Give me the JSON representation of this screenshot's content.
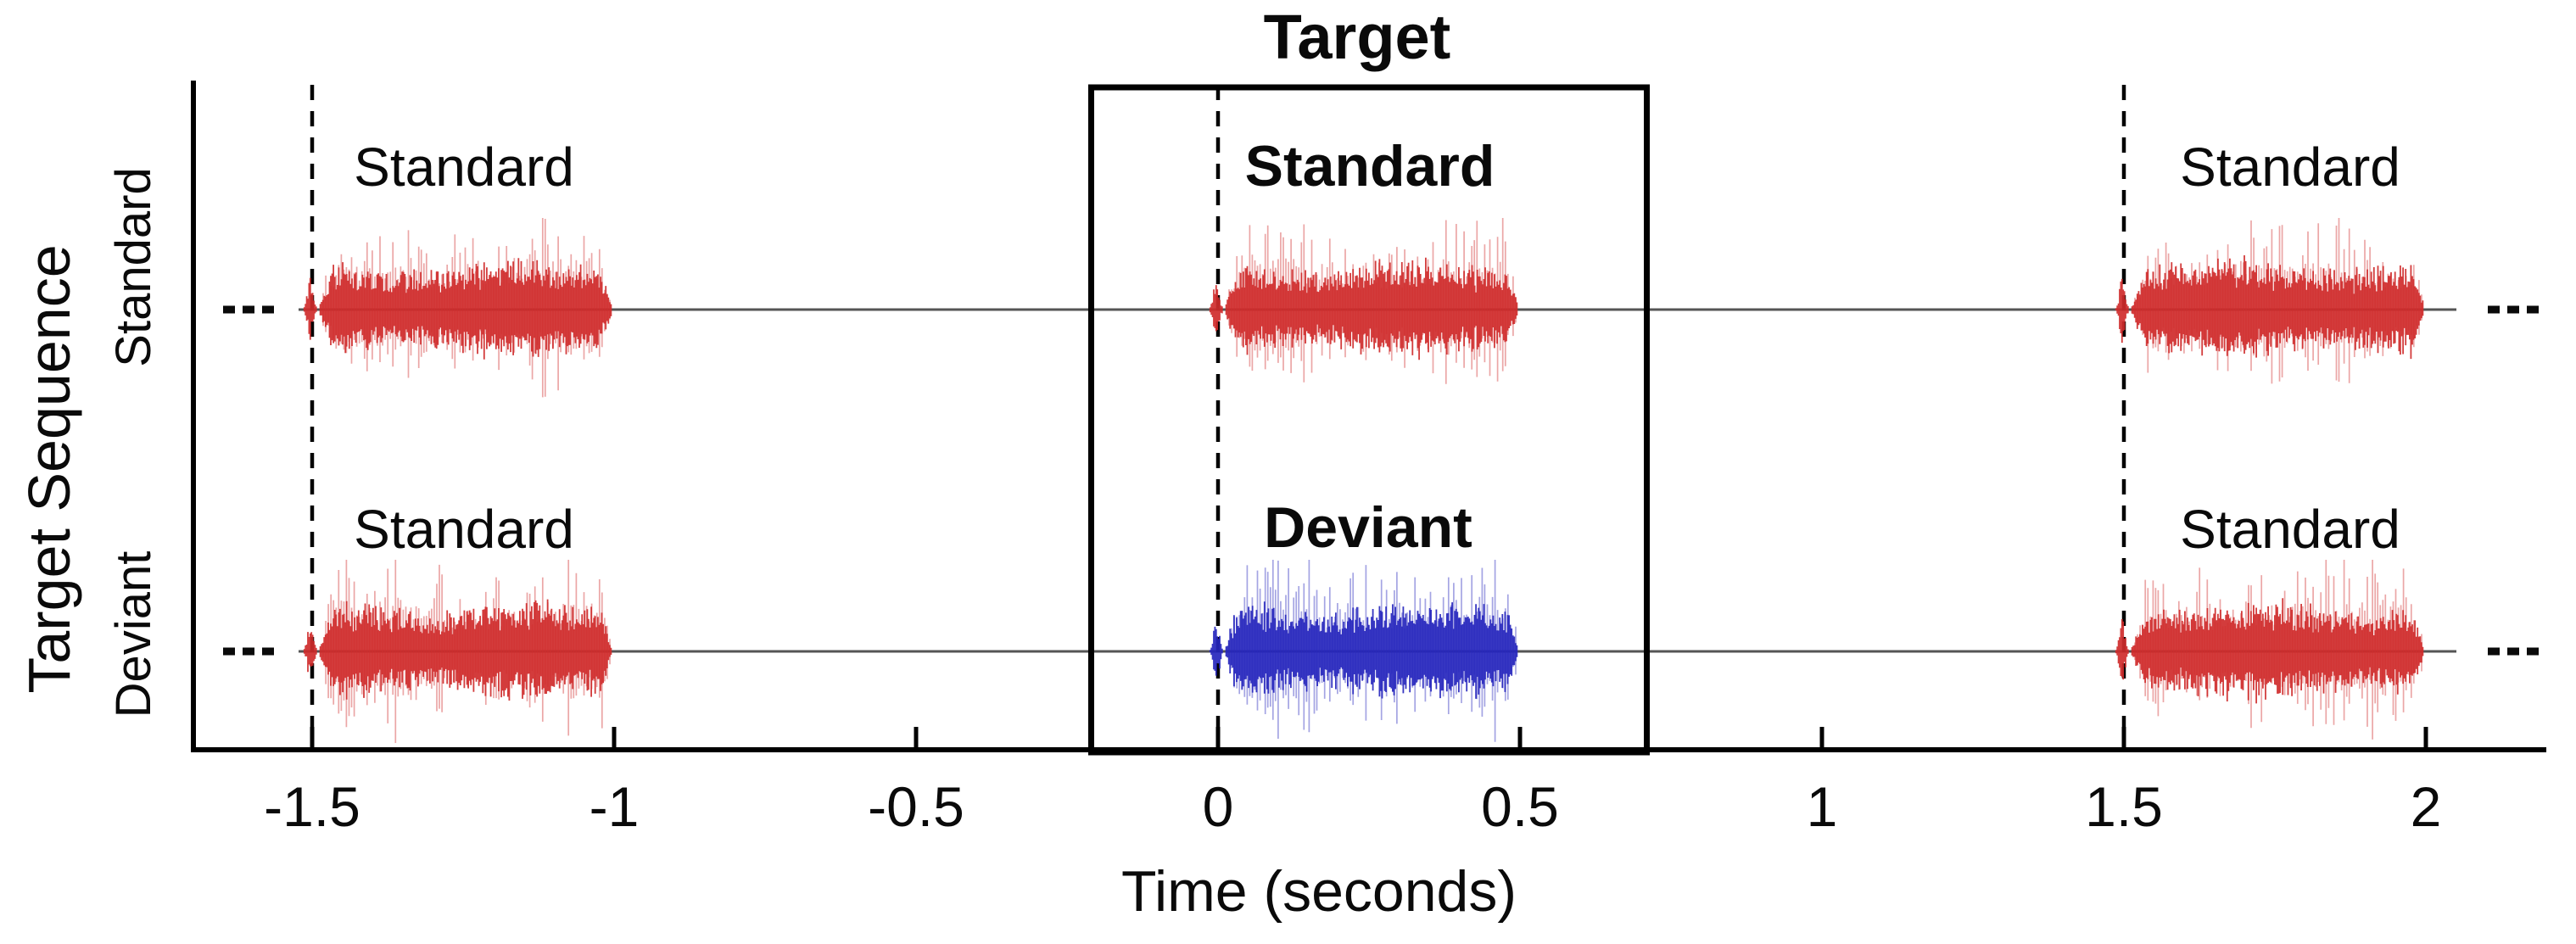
{
  "chart_data": {
    "type": "waveform-raster",
    "title": "Target",
    "xlabel": "Time (seconds)",
    "ylabel": "Target Sequence",
    "x_ticks": [
      "-1.5",
      "-1",
      "-0.5",
      "0",
      "0.5",
      "1",
      "1.5",
      "2"
    ],
    "x_tick_values": [
      -1.5,
      -1,
      -0.5,
      0,
      0.5,
      1,
      1.5,
      2
    ],
    "x_range_seconds": [
      -1.7,
      2.2
    ],
    "stimulus_duration_seconds": 0.5,
    "stimulus_onsets_seconds": [
      -1.5,
      0,
      1.5
    ],
    "dashed_onset_lines_seconds": [
      -1.5,
      0,
      1.5
    ],
    "target_window_seconds": [
      -0.21,
      0.71
    ],
    "continuation_marker": "...",
    "legend_position": "none",
    "grid": false,
    "colors": {
      "standard_tone": "#cf2b2b",
      "deviant_tone": "#2626bd",
      "baseline_line": "#555555",
      "axis": "#000000"
    },
    "rows": [
      {
        "label": "Standard",
        "stimuli": [
          {
            "onset": -1.5,
            "label": "Standard",
            "tone": "standard",
            "emphasized": false
          },
          {
            "onset": 0.0,
            "label": "Standard",
            "tone": "standard",
            "emphasized": true
          },
          {
            "onset": 1.5,
            "label": "Standard",
            "tone": "standard",
            "emphasized": false
          }
        ]
      },
      {
        "label": "Deviant",
        "stimuli": [
          {
            "onset": -1.5,
            "label": "Standard",
            "tone": "standard",
            "emphasized": false
          },
          {
            "onset": 0.0,
            "label": "Deviant",
            "tone": "deviant",
            "emphasized": true
          },
          {
            "onset": 1.5,
            "label": "Standard",
            "tone": "standard",
            "emphasized": false
          }
        ]
      }
    ]
  }
}
